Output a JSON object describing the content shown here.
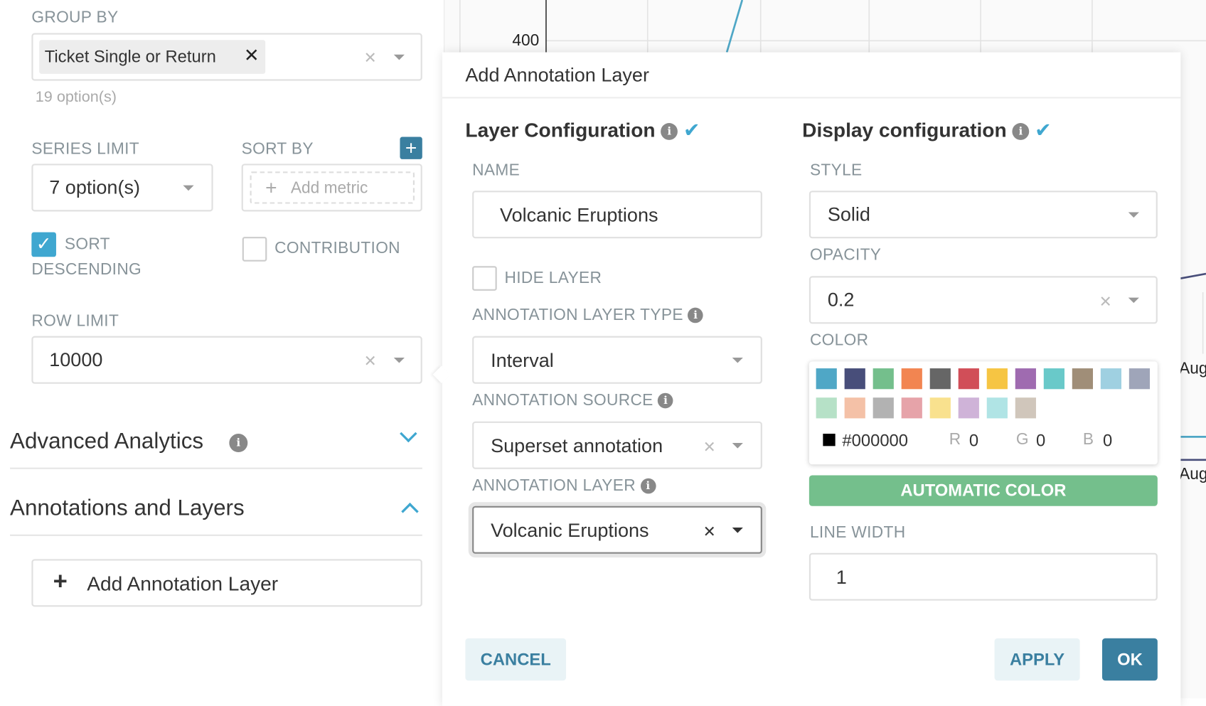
{
  "left_panel": {
    "group_by": {
      "label": "GROUP BY",
      "tag": "Ticket Single or Return",
      "options_count": "19 option(s)"
    },
    "series_limit": {
      "label": "SERIES LIMIT",
      "value": "7 option(s)"
    },
    "sort_by": {
      "label": "SORT BY",
      "placeholder": "Add metric"
    },
    "sort_descending": {
      "label_line1": "SORT",
      "label_line2": "DESCENDING",
      "checked": true
    },
    "contribution": {
      "label": "CONTRIBUTION",
      "checked": false
    },
    "row_limit": {
      "label": "ROW LIMIT",
      "value": "10000"
    },
    "sections": [
      {
        "title": "Advanced Analytics",
        "expanded": false
      },
      {
        "title": "Annotations and Layers",
        "expanded": true
      }
    ],
    "add_annotation_layer": "Add Annotation Layer"
  },
  "chart": {
    "y_tick": "400",
    "x_ticks": [
      "Aug",
      "Aug"
    ],
    "colors": {
      "series1": "#4fa7c6",
      "series2": "#484e7a"
    }
  },
  "modal": {
    "title": "Add Annotation Layer",
    "layer_config": {
      "heading": "Layer Configuration",
      "name_label": "NAME",
      "name_value": "Volcanic Eruptions",
      "hide_layer_label": "HIDE LAYER",
      "hide_layer_checked": false,
      "type_label": "ANNOTATION LAYER TYPE",
      "type_value": "Interval",
      "source_label": "ANNOTATION SOURCE",
      "source_value": "Superset annotation",
      "layer_label": "ANNOTATION LAYER",
      "layer_value": "Volcanic Eruptions"
    },
    "display_config": {
      "heading": "Display configuration",
      "style_label": "STYLE",
      "style_value": "Solid",
      "opacity_label": "OPACITY",
      "opacity_value": "0.2",
      "color_label": "COLOR",
      "swatches": [
        "#4fa7c6",
        "#484e7a",
        "#74bf8c",
        "#f28551",
        "#666666",
        "#d14e58",
        "#f6c543",
        "#9f6bb0",
        "#69c9c9",
        "#a08e78",
        "#9fd0e1",
        "#9fa5b9",
        "#b6e1c7",
        "#f4c1a7",
        "#b2b2b2",
        "#e6a3a9",
        "#f9e18e",
        "#cfb3d8",
        "#b0e4e5",
        "#d0c6bb"
      ],
      "hex": "#000000",
      "r_label": "R",
      "r": "0",
      "g_label": "G",
      "g": "0",
      "b_label": "B",
      "b": "0",
      "automatic_color": "AUTOMATIC COLOR",
      "line_width_label": "LINE WIDTH",
      "line_width_value": "1"
    },
    "buttons": {
      "cancel": "CANCEL",
      "apply": "APPLY",
      "ok": "OK"
    },
    "colors": {
      "primary": "#3a7fa0",
      "success": "#74bf8c",
      "check": "#3fa7d0"
    }
  }
}
